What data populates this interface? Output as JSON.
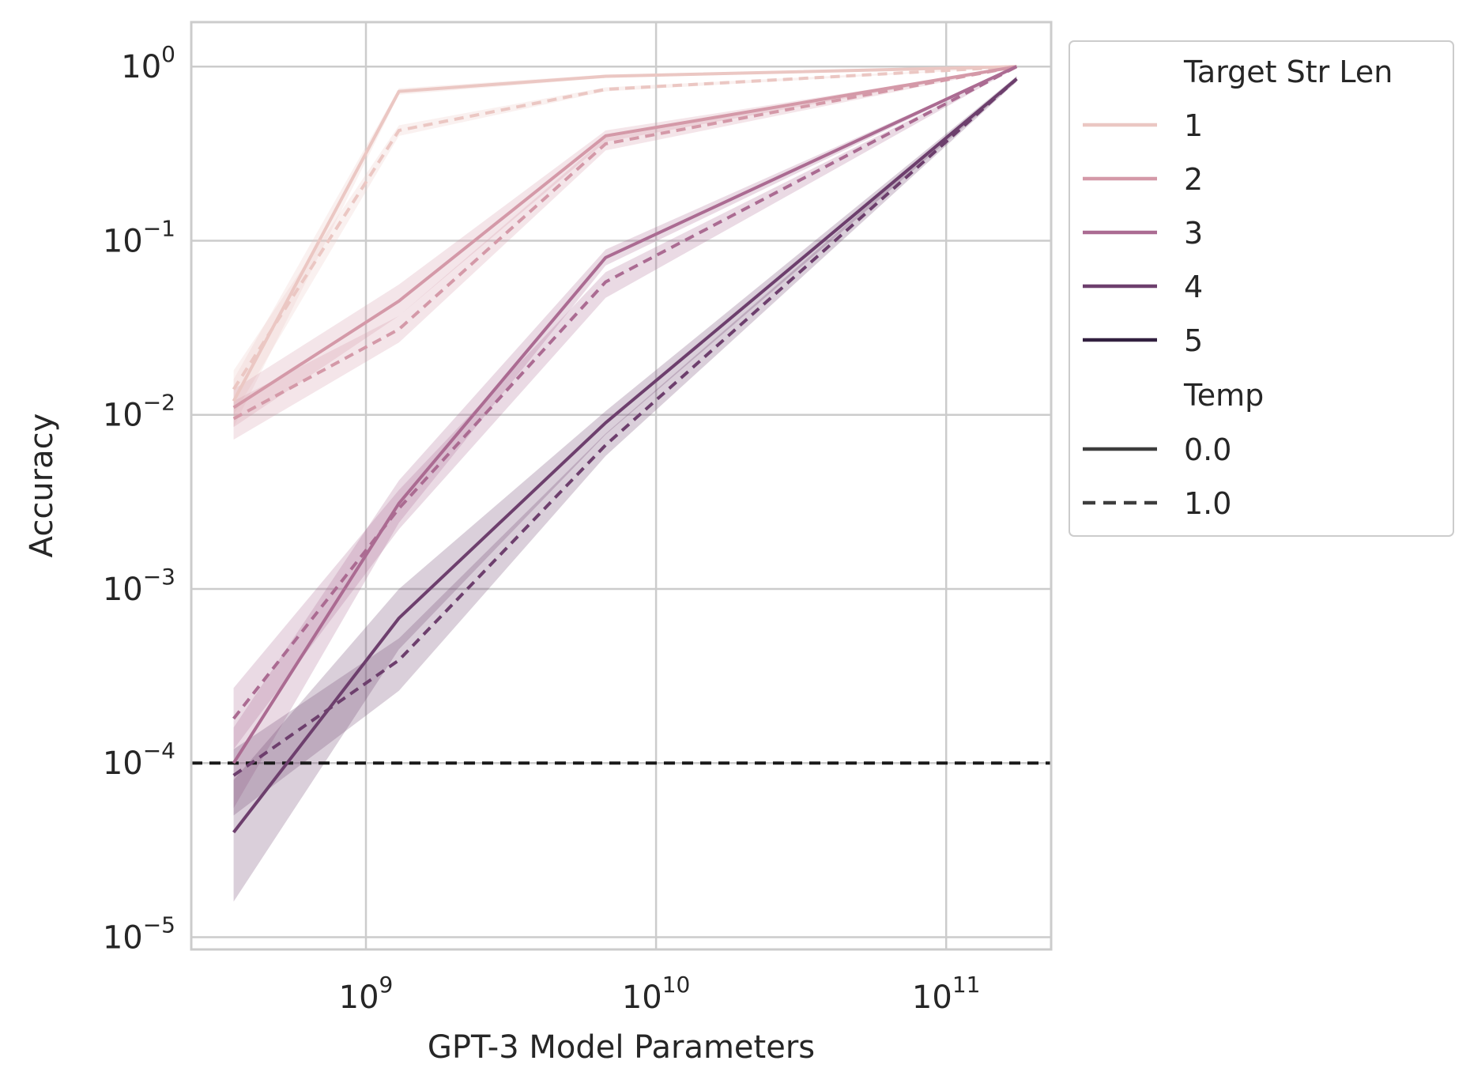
{
  "chart_data": {
    "type": "line",
    "xlabel": "GPT-3 Model Parameters",
    "ylabel": "Accuracy",
    "xscale": "log",
    "yscale": "log",
    "xlim": [
      250000000,
      230000000000
    ],
    "ylim": [
      8.5e-06,
      1.8
    ],
    "x_ticks": [
      {
        "value": 1000000000,
        "base": "10",
        "exp": "9"
      },
      {
        "value": 10000000000,
        "base": "10",
        "exp": "10"
      },
      {
        "value": 100000000000,
        "base": "10",
        "exp": "11"
      }
    ],
    "y_ticks": [
      {
        "value": 1,
        "base": "10",
        "exp": "0"
      },
      {
        "value": 0.1,
        "base": "10",
        "exp": "−1"
      },
      {
        "value": 0.01,
        "base": "10",
        "exp": "−2"
      },
      {
        "value": 0.001,
        "base": "10",
        "exp": "−3"
      },
      {
        "value": 0.0001,
        "base": "10",
        "exp": "−4"
      },
      {
        "value": 1e-05,
        "base": "10",
        "exp": "−5"
      }
    ],
    "grid": true,
    "x": [
      350000000,
      1300000000,
      6700000000,
      175000000000
    ],
    "reference_line": {
      "y": 0.0001,
      "style": "dashed",
      "color": "#1a1a1a"
    },
    "legend": {
      "placement": "outside-right",
      "hue_title": "Target Str Len",
      "style_title": "Temp",
      "style_entries": [
        {
          "label": "0.0",
          "dash": "solid"
        },
        {
          "label": "1.0",
          "dash": "dashed"
        }
      ]
    },
    "series": [
      {
        "name": "1",
        "color": "#ebc7c3",
        "temp0": [
          0.012,
          0.72,
          0.88,
          1.0
        ],
        "temp0_lo": [
          0.0085,
          0.69,
          0.86,
          0.99
        ],
        "temp0_hi": [
          0.016,
          0.75,
          0.9,
          1.0
        ],
        "temp1": [
          0.014,
          0.43,
          0.74,
          1.0
        ],
        "temp1_lo": [
          0.01,
          0.4,
          0.72,
          0.99
        ],
        "temp1_hi": [
          0.018,
          0.46,
          0.76,
          1.0
        ]
      },
      {
        "name": "2",
        "color": "#d499a8",
        "temp0": [
          0.011,
          0.045,
          0.4,
          1.0
        ],
        "temp0_lo": [
          0.0085,
          0.037,
          0.37,
          0.99
        ],
        "temp0_hi": [
          0.014,
          0.056,
          0.43,
          1.0
        ],
        "temp1": [
          0.0095,
          0.031,
          0.36,
          1.0
        ],
        "temp1_lo": [
          0.0072,
          0.026,
          0.33,
          0.99
        ],
        "temp1_hi": [
          0.012,
          0.037,
          0.39,
          1.0
        ]
      },
      {
        "name": "3",
        "color": "#ab6b92",
        "temp0": [
          0.0001,
          0.0031,
          0.08,
          1.0
        ],
        "temp0_lo": [
          5.5e-05,
          0.0024,
          0.072,
          0.99
        ],
        "temp0_hi": [
          0.00016,
          0.0042,
          0.089,
          1.0
        ],
        "temp1": [
          0.00018,
          0.0029,
          0.058,
          1.0
        ],
        "temp1_lo": [
          0.00012,
          0.0022,
          0.047,
          0.99
        ],
        "temp1_hi": [
          0.00027,
          0.0037,
          0.066,
          1.0
        ]
      },
      {
        "name": "4",
        "color": "#6d3f6d",
        "temp0": [
          4e-05,
          0.00068,
          0.009,
          0.85
        ],
        "temp0_lo": [
          1.6e-05,
          0.00045,
          0.0077,
          0.82
        ],
        "temp0_hi": [
          8e-05,
          0.001,
          0.0105,
          0.88
        ],
        "temp1": [
          8.5e-05,
          0.00039,
          0.0067,
          0.85
        ],
        "temp1_lo": [
          5e-05,
          0.00026,
          0.0058,
          0.82
        ],
        "temp1_hi": [
          0.00012,
          0.00052,
          0.0078,
          0.88
        ]
      },
      {
        "name": "5",
        "color": "#32203f",
        "temp0": [
          null,
          null,
          null,
          0.87
        ],
        "temp0_lo": [],
        "temp0_hi": [],
        "temp1": [
          null,
          null,
          null,
          0.82
        ],
        "temp1_lo": [],
        "temp1_hi": []
      }
    ]
  }
}
